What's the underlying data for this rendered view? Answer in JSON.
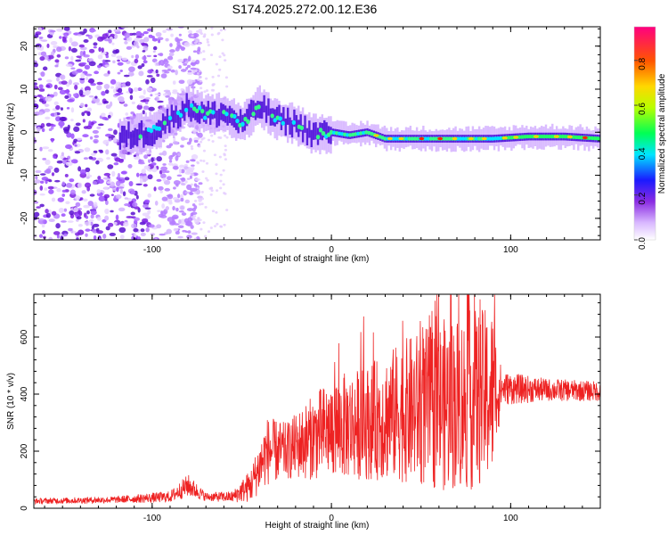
{
  "figure": {
    "title": "S174.2025.272.00.12.E36"
  },
  "chart_data": [
    {
      "type": "heatmap",
      "title": "S174.2025.272.00.12.E36",
      "xlabel": "Height of straight line (km)",
      "ylabel": "Frequency (Hz)",
      "xlim": [
        -166,
        150
      ],
      "ylim": [
        -25,
        24.5
      ],
      "xticks": [
        -100,
        0,
        100
      ],
      "yticks": [
        -20,
        -10,
        0,
        10,
        20
      ],
      "xtick_labels": [
        "-100",
        "0",
        "100"
      ],
      "ytick_labels": [
        "-20",
        "-10",
        "0",
        "10",
        "20"
      ],
      "colorbar": {
        "label": "Normalized spectral amplitude",
        "range": [
          0,
          0.95
        ],
        "ticks": [
          0.0,
          0.2,
          0.4,
          0.6,
          0.8
        ],
        "tick_labels": [
          "0.0",
          "0.2",
          "0.4",
          "0.6",
          "0.8"
        ],
        "colors": [
          "#ffffff",
          "#c6a4ff",
          "#7a1ee0",
          "#1a1aff",
          "#00e5ff",
          "#00ff33",
          "#ffff00",
          "#ff7f00",
          "#ff0000",
          "#ff0080"
        ]
      },
      "ridge": [
        {
          "x": -115,
          "y": -1
        },
        {
          "x": -100,
          "y": 0
        },
        {
          "x": -90,
          "y": 3
        },
        {
          "x": -80,
          "y": 6
        },
        {
          "x": -70,
          "y": 4
        },
        {
          "x": -60,
          "y": 4.5
        },
        {
          "x": -50,
          "y": 2
        },
        {
          "x": -40,
          "y": 6
        },
        {
          "x": -30,
          "y": 3
        },
        {
          "x": -20,
          "y": 2
        },
        {
          "x": -10,
          "y": -0.5
        },
        {
          "x": 0,
          "y": 0
        },
        {
          "x": 10,
          "y": -0.7
        },
        {
          "x": 20,
          "y": 0
        },
        {
          "x": 30,
          "y": -1.5
        },
        {
          "x": 50,
          "y": -1.5
        },
        {
          "x": 70,
          "y": -1.5
        },
        {
          "x": 90,
          "y": -1.5
        },
        {
          "x": 110,
          "y": -1
        },
        {
          "x": 130,
          "y": -1
        },
        {
          "x": 150,
          "y": -1.5
        }
      ],
      "noise_region_x": [
        -166,
        -85
      ]
    },
    {
      "type": "line",
      "xlabel": "Height of straight line (km)",
      "ylabel": "SNR (10 * v/v)",
      "xlim": [
        -166,
        150
      ],
      "ylim": [
        0,
        750
      ],
      "xticks": [
        -100,
        0,
        100
      ],
      "yticks": [
        0,
        200,
        400,
        600
      ],
      "xtick_labels": [
        "-100",
        "0",
        "100"
      ],
      "ytick_labels": [
        "0",
        "200",
        "400",
        "600"
      ],
      "color": "#ee2222",
      "envelope": [
        {
          "x": -166,
          "base": 25,
          "amp": 10
        },
        {
          "x": -120,
          "base": 30,
          "amp": 12
        },
        {
          "x": -90,
          "base": 40,
          "amp": 20
        },
        {
          "x": -80,
          "base": 80,
          "amp": 40
        },
        {
          "x": -70,
          "base": 40,
          "amp": 15
        },
        {
          "x": -55,
          "base": 40,
          "amp": 20
        },
        {
          "x": -45,
          "base": 80,
          "amp": 60
        },
        {
          "x": -36,
          "base": 200,
          "amp": 120
        },
        {
          "x": -25,
          "base": 200,
          "amp": 100
        },
        {
          "x": -10,
          "base": 250,
          "amp": 150
        },
        {
          "x": 0,
          "base": 280,
          "amp": 180
        },
        {
          "x": 20,
          "base": 300,
          "amp": 200
        },
        {
          "x": 40,
          "base": 340,
          "amp": 250
        },
        {
          "x": 60,
          "base": 360,
          "amp": 300
        },
        {
          "x": 80,
          "base": 380,
          "amp": 320
        },
        {
          "x": 90,
          "base": 400,
          "amp": 300
        },
        {
          "x": 95,
          "base": 420,
          "amp": 60
        },
        {
          "x": 120,
          "base": 415,
          "amp": 40
        },
        {
          "x": 150,
          "base": 410,
          "amp": 35
        }
      ]
    }
  ]
}
